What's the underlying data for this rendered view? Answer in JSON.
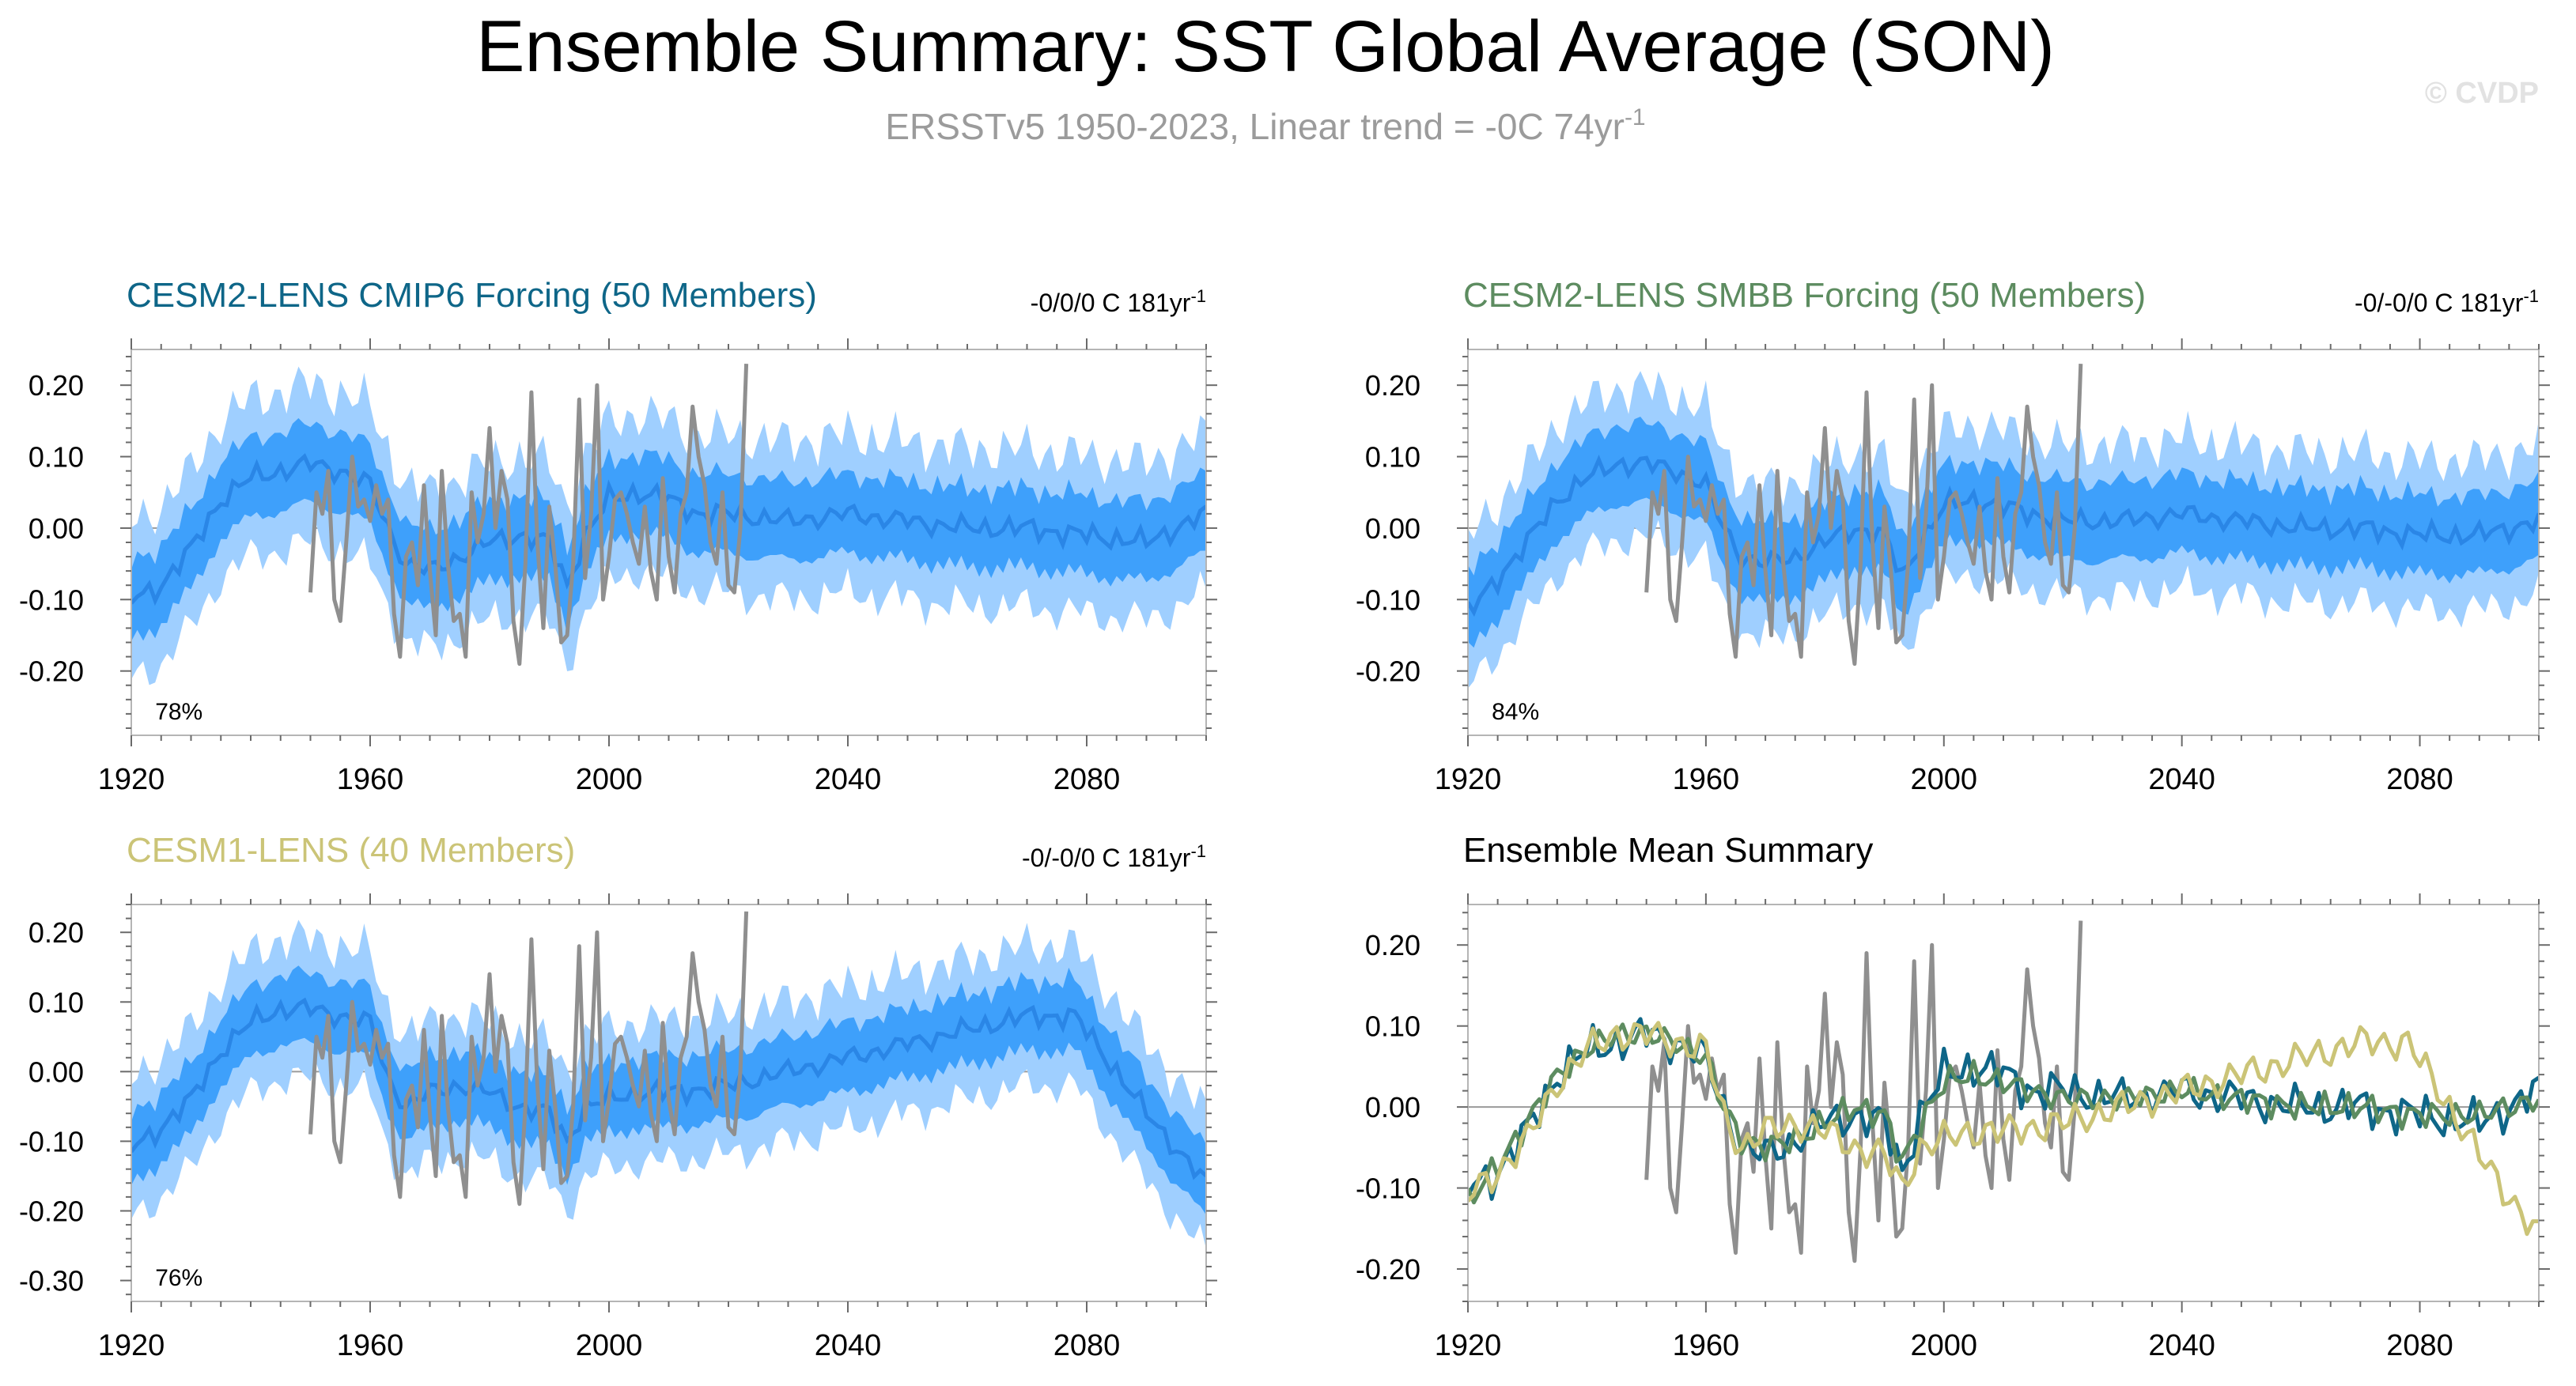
{
  "title": "Ensemble Summary: SST Global Average (SON)",
  "subtitle": "ERSSTv5 1950-2023, Linear trend = -0C 74yr",
  "subtitle_sup": "-1",
  "watermark": "© CVDP",
  "colors": {
    "light_band": "#9fcfff",
    "dark_band": "#3ea0fb",
    "mean_line": "#2a86e6",
    "obs_line": "#8f8f8f",
    "cmip6": "#0e6688",
    "smbb": "#5d8c60",
    "cesm1": "#cbc477"
  },
  "chart_data": [
    {
      "id": "cmip6",
      "type": "area",
      "title": "CESM2-LENS CMIP6 Forcing (50 Members)",
      "title_color": "#0e6688",
      "trend": "-0/0/0 C 181yr",
      "trend_sup": "-1",
      "pct": "78%",
      "xlim": [
        1920,
        2100
      ],
      "ylim": [
        -0.29,
        0.25
      ],
      "xticks": [
        1920,
        1960,
        2000,
        2040,
        2080
      ],
      "xticklabels": [
        "1920",
        "1960",
        "2000",
        "2040",
        "2080"
      ],
      "yticks": [
        -0.2,
        -0.1,
        0.0,
        0.1,
        0.2
      ],
      "yticklabels": [
        "-0.20",
        "-0.10",
        "0.00",
        "0.10",
        "0.20"
      ],
      "mean_key": [
        [
          1920,
          -0.1
        ],
        [
          1925,
          -0.08
        ],
        [
          1930,
          -0.03
        ],
        [
          1935,
          0.04
        ],
        [
          1940,
          0.07
        ],
        [
          1945,
          0.08
        ],
        [
          1950,
          0.09
        ],
        [
          1955,
          0.08
        ],
        [
          1960,
          0.06
        ],
        [
          1963,
          0.0
        ],
        [
          1966,
          -0.05
        ],
        [
          1970,
          -0.06
        ],
        [
          1975,
          -0.04
        ],
        [
          1980,
          -0.02
        ],
        [
          1985,
          -0.01
        ],
        [
          1990,
          -0.02
        ],
        [
          1993,
          -0.08
        ],
        [
          1996,
          -0.01
        ],
        [
          2000,
          0.04
        ],
        [
          2005,
          0.05
        ],
        [
          2010,
          0.04
        ],
        [
          2015,
          0.02
        ],
        [
          2020,
          0.02
        ],
        [
          2030,
          0.01
        ],
        [
          2040,
          0.02
        ],
        [
          2050,
          0.01
        ],
        [
          2060,
          0.0
        ],
        [
          2070,
          0.0
        ],
        [
          2080,
          -0.01
        ],
        [
          2090,
          -0.02
        ],
        [
          2100,
          0.02
        ]
      ],
      "dark_half": 0.055,
      "light_half": 0.11
    },
    {
      "id": "smbb",
      "type": "area",
      "title": "CESM2-LENS SMBB Forcing (50 Members)",
      "title_color": "#5d8c60",
      "trend": "-0/-0/0 C 181yr",
      "trend_sup": "-1",
      "pct": "84%",
      "xlim": [
        1920,
        2100
      ],
      "ylim": [
        -0.29,
        0.25
      ],
      "xticks": [
        1920,
        1960,
        2000,
        2040,
        2080
      ],
      "xticklabels": [
        "1920",
        "1960",
        "2000",
        "2040",
        "2080"
      ],
      "yticks": [
        -0.2,
        -0.1,
        0.0,
        0.1,
        0.2
      ],
      "yticklabels": [
        "-0.20",
        "-0.10",
        "0.00",
        "0.10",
        "0.20"
      ],
      "mean_key": [
        [
          1920,
          -0.12
        ],
        [
          1925,
          -0.07
        ],
        [
          1930,
          -0.02
        ],
        [
          1935,
          0.04
        ],
        [
          1940,
          0.07
        ],
        [
          1945,
          0.09
        ],
        [
          1950,
          0.09
        ],
        [
          1955,
          0.08
        ],
        [
          1960,
          0.06
        ],
        [
          1963,
          0.0
        ],
        [
          1966,
          -0.04
        ],
        [
          1970,
          -0.05
        ],
        [
          1975,
          -0.04
        ],
        [
          1980,
          -0.02
        ],
        [
          1985,
          0.0
        ],
        [
          1990,
          -0.01
        ],
        [
          1993,
          -0.07
        ],
        [
          1996,
          -0.02
        ],
        [
          2000,
          0.03
        ],
        [
          2005,
          0.04
        ],
        [
          2010,
          0.03
        ],
        [
          2015,
          0.02
        ],
        [
          2020,
          0.01
        ],
        [
          2030,
          0.01
        ],
        [
          2040,
          0.02
        ],
        [
          2050,
          0.01
        ],
        [
          2060,
          0.0
        ],
        [
          2070,
          0.0
        ],
        [
          2080,
          -0.01
        ],
        [
          2090,
          -0.01
        ],
        [
          2100,
          0.01
        ]
      ],
      "dark_half": 0.055,
      "light_half": 0.105
    },
    {
      "id": "cesm1",
      "type": "area",
      "title": "CESM1-LENS (40 Members)",
      "title_color": "#cbc477",
      "trend": "-0/-0/0 C 181yr",
      "trend_sup": "-1",
      "pct": "76%",
      "xlim": [
        1920,
        2100
      ],
      "ylim": [
        -0.33,
        0.24
      ],
      "xticks": [
        1920,
        1960,
        2000,
        2040,
        2080
      ],
      "xticklabels": [
        "1920",
        "1960",
        "2000",
        "2040",
        "2080"
      ],
      "yticks": [
        -0.3,
        -0.2,
        -0.1,
        0.0,
        0.1,
        0.2
      ],
      "yticklabels": [
        "-0.30",
        "-0.20",
        "-0.10",
        "0.00",
        "0.10",
        "0.20"
      ],
      "mean_key": [
        [
          1920,
          -0.11
        ],
        [
          1925,
          -0.08
        ],
        [
          1930,
          -0.04
        ],
        [
          1935,
          0.03
        ],
        [
          1940,
          0.07
        ],
        [
          1945,
          0.09
        ],
        [
          1950,
          0.09
        ],
        [
          1955,
          0.08
        ],
        [
          1960,
          0.07
        ],
        [
          1963,
          -0.01
        ],
        [
          1966,
          -0.05
        ],
        [
          1970,
          -0.03
        ],
        [
          1975,
          -0.02
        ],
        [
          1980,
          -0.03
        ],
        [
          1985,
          -0.05
        ],
        [
          1990,
          -0.06
        ],
        [
          1993,
          -0.1
        ],
        [
          1996,
          -0.05
        ],
        [
          2000,
          -0.04
        ],
        [
          2005,
          -0.03
        ],
        [
          2010,
          -0.03
        ],
        [
          2020,
          -0.02
        ],
        [
          2030,
          0.0
        ],
        [
          2040,
          0.02
        ],
        [
          2050,
          0.04
        ],
        [
          2060,
          0.06
        ],
        [
          2070,
          0.08
        ],
        [
          2078,
          0.08
        ],
        [
          2085,
          0.0
        ],
        [
          2090,
          -0.06
        ],
        [
          2095,
          -0.11
        ],
        [
          2100,
          -0.16
        ]
      ],
      "dark_half": 0.05,
      "light_half": 0.1
    },
    {
      "id": "summary",
      "type": "line",
      "title": "Ensemble Mean Summary",
      "title_color": "#000000",
      "xlim": [
        1920,
        2100
      ],
      "ylim": [
        -0.24,
        0.25
      ],
      "xticks": [
        1920,
        1960,
        2000,
        2040,
        2080
      ],
      "xticklabels": [
        "1920",
        "1960",
        "2000",
        "2040",
        "2080"
      ],
      "yticks": [
        -0.2,
        -0.1,
        0.0,
        0.1,
        0.2
      ],
      "yticklabels": [
        "-0.20",
        "-0.10",
        "0.00",
        "0.10",
        "0.20"
      ],
      "series": [
        {
          "name": "CESM2-LENS CMIP6 Forcing",
          "color": "#0e6688",
          "source": "cmip6"
        },
        {
          "name": "CESM2-LENS SMBB Forcing",
          "color": "#5d8c60",
          "source": "smbb"
        },
        {
          "name": "CESM1-LENS",
          "color": "#cbc477",
          "source": "cesm1"
        }
      ]
    }
  ],
  "observations": {
    "name": "ERSSTv5",
    "color": "#8f8f8f",
    "x": [
      1950,
      1951,
      1952,
      1953,
      1954,
      1955,
      1956,
      1957,
      1958,
      1959,
      1960,
      1961,
      1962,
      1963,
      1964,
      1965,
      1966,
      1967,
      1968,
      1969,
      1970,
      1971,
      1972,
      1973,
      1974,
      1975,
      1976,
      1977,
      1978,
      1979,
      1980,
      1981,
      1982,
      1983,
      1984,
      1985,
      1986,
      1987,
      1988,
      1989,
      1990,
      1991,
      1992,
      1993,
      1994,
      1995,
      1996,
      1997,
      1998,
      1999,
      2000,
      2001,
      2002,
      2003,
      2004,
      2005,
      2006,
      2007,
      2008,
      2009,
      2010,
      2011,
      2012,
      2013,
      2014,
      2015,
      2016,
      2017,
      2018,
      2019,
      2020,
      2021,
      2022,
      2023
    ],
    "y": [
      -0.09,
      0.05,
      0.02,
      0.08,
      -0.1,
      -0.13,
      -0.02,
      0.1,
      0.03,
      0.04,
      0.01,
      0.06,
      0.02,
      0.04,
      -0.12,
      -0.18,
      -0.04,
      -0.02,
      -0.08,
      0.06,
      -0.06,
      -0.15,
      0.08,
      -0.05,
      -0.13,
      -0.12,
      -0.18,
      0.05,
      -0.02,
      0.02,
      0.14,
      0.0,
      0.08,
      0.04,
      -0.13,
      -0.19,
      -0.05,
      0.19,
      -0.02,
      -0.14,
      0.03,
      -0.05,
      -0.16,
      -0.15,
      -0.05,
      0.18,
      -0.07,
      0.02,
      0.2,
      -0.1,
      -0.04,
      0.04,
      0.05,
      0.02,
      -0.02,
      -0.05,
      0.03,
      -0.06,
      -0.1,
      0.07,
      -0.04,
      -0.09,
      0.02,
      0.05,
      0.17,
      0.1,
      0.06,
      -0.02,
      -0.05,
      0.05,
      -0.08,
      -0.09,
      0.0,
      0.23
    ]
  }
}
